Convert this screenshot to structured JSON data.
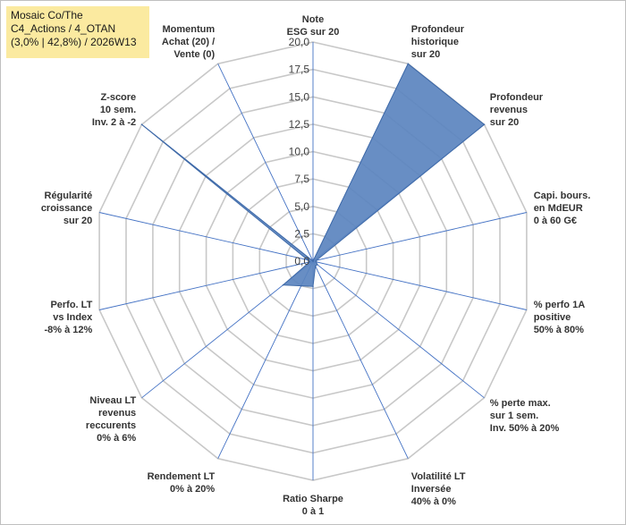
{
  "title_box": {
    "line1": "Mosaic Co/The",
    "line2": "C4_Actions / 4_OTAN",
    "line3": "(3,0% | 42,8%) / 2026W13"
  },
  "colors": {
    "fill": "#5b84bf",
    "stroke": "#3f6aa8",
    "grid": "#c8c8c8",
    "axis": "#4472c4",
    "title_bg": "#fbeaa0"
  },
  "chart_data": {
    "type": "radar",
    "range": [
      0,
      20
    ],
    "tick_step": 2.5,
    "grid": true,
    "tick_labels": [
      "0,0",
      "2,5",
      "5,0",
      "7,5",
      "10,0",
      "12,5",
      "15,0",
      "17,5",
      "20,0"
    ],
    "axes": [
      [
        "Note",
        "ESG sur 20"
      ],
      [
        "Profondeur",
        "historique",
        "sur 20"
      ],
      [
        "Profondeur",
        "revenus",
        "sur 20"
      ],
      [
        "Capi. bours.",
        "en MdEUR",
        "0 à 60 G€"
      ],
      [
        "% perfo 1A",
        "positive",
        "50% à 80%"
      ],
      [
        "% perte max.",
        "sur 1 sem.",
        "Inv. 50% à 20%"
      ],
      [
        "Volatilité LT",
        "Inversée",
        "40% à 0%"
      ],
      [
        "Ratio Sharpe",
        "0 à 1"
      ],
      [
        "Rendement LT",
        "0% à 20%"
      ],
      [
        "Niveau LT",
        "revenus",
        "reccurents",
        "0% à 6%"
      ],
      [
        "Perfo. LT",
        "vs Index",
        "-8% à 12%"
      ],
      [
        "Régularité",
        "croissance",
        "sur 20"
      ],
      [
        "Z-score",
        "10 sem.",
        "Inv. 2 à -2"
      ],
      [
        "Momentum",
        "Achat (20) /",
        "Vente (0)"
      ]
    ],
    "values": [
      0,
      20,
      20,
      0.3,
      0.3,
      0.5,
      0.5,
      2.3,
      2.5,
      3.5,
      0.3,
      0.5,
      20,
      0
    ]
  }
}
